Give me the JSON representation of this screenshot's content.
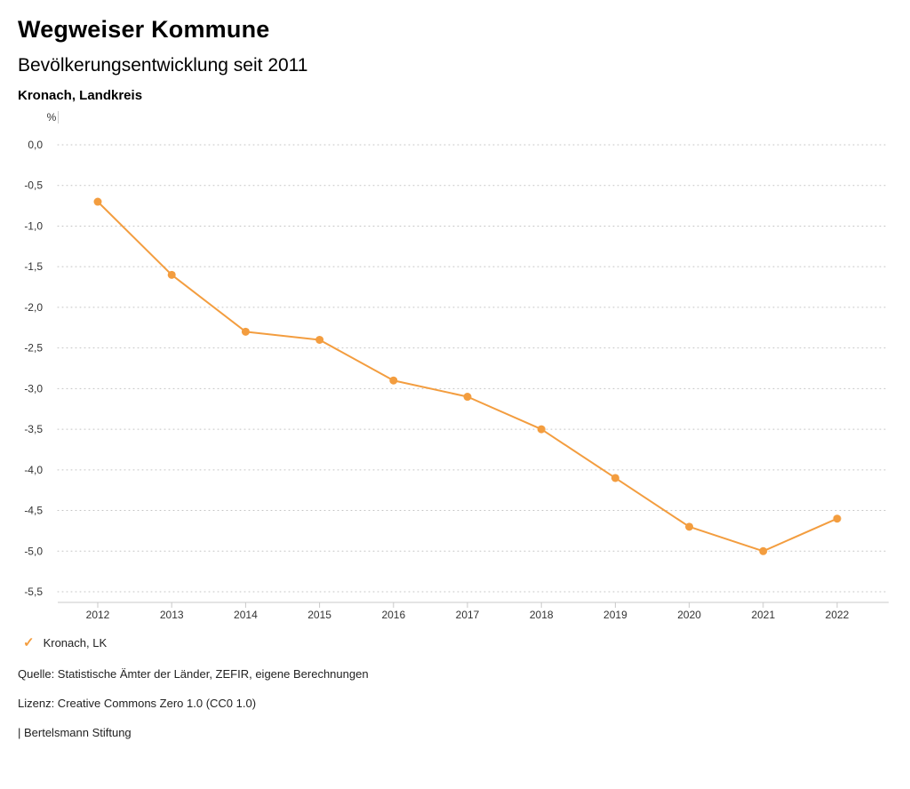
{
  "header": {
    "title": "Wegweiser Kommune",
    "subtitle": "Bevölkerungsentwicklung seit 2011",
    "region": "Kronach, Landkreis"
  },
  "chart_data": {
    "type": "line",
    "title": "Bevölkerungsentwicklung seit 2011",
    "unit": "%",
    "x": [
      2012,
      2013,
      2014,
      2015,
      2016,
      2017,
      2018,
      2019,
      2020,
      2021,
      2022
    ],
    "series": [
      {
        "name": "Kronach, LK",
        "values": [
          -0.7,
          -1.6,
          -2.3,
          -2.4,
          -2.9,
          -3.1,
          -3.5,
          -4.1,
          -4.7,
          -5.0,
          -4.6
        ],
        "color": "#f39d3f"
      }
    ],
    "ylim": [
      -5.5,
      0
    ],
    "ytick_step": 0.5,
    "ytick_labels": [
      "0,0",
      "-0,5",
      "-1,0",
      "-1,5",
      "-2,0",
      "-2,5",
      "-3,0",
      "-3,5",
      "-4,0",
      "-4,5",
      "-5,0",
      "-5,5"
    ],
    "grid": true,
    "legend_position": "bottom-left"
  },
  "legend": {
    "items": [
      {
        "label": "Kronach, LK",
        "color": "#f39d3f",
        "check_icon": "✓"
      }
    ]
  },
  "footer": {
    "source": "Quelle: Statistische Ämter der Länder, ZEFIR, eigene Berechnungen",
    "license": "Lizenz: Creative Commons Zero 1.0 (CC0 1.0)",
    "attribution": "| Bertelsmann Stiftung"
  }
}
